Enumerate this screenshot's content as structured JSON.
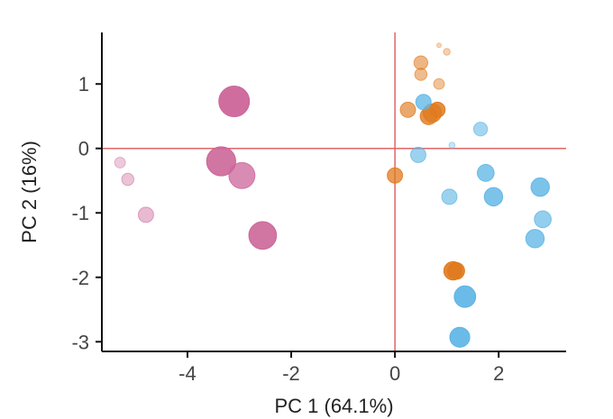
{
  "chart_data": {
    "type": "scatter",
    "title": "",
    "xlabel": "PC 1 (64.1%)",
    "ylabel": "PC 2 (16%)",
    "xlim": [
      -5.65,
      3.3
    ],
    "ylim": [
      -3.15,
      1.8
    ],
    "x_ticks": [
      -4,
      -2,
      0,
      2
    ],
    "x_tick_labels": [
      "-4",
      "-2",
      "0",
      "2"
    ],
    "y_ticks": [
      -3,
      -2,
      -1,
      0,
      1
    ],
    "y_tick_labels": [
      "-3",
      "-2",
      "-1",
      "0",
      "1"
    ],
    "reference_lines": {
      "x": 0,
      "y": 0,
      "color": "#e06666"
    },
    "grid": false,
    "legend": "none",
    "series": [
      {
        "color": "#cc6699",
        "points": [
          {
            "x": -3.1,
            "y": 0.73,
            "size": 1.0,
            "opacity": 0.95
          },
          {
            "x": -3.35,
            "y": -0.2,
            "size": 0.95,
            "opacity": 0.9
          },
          {
            "x": -2.95,
            "y": -0.42,
            "size": 0.85,
            "opacity": 0.75
          },
          {
            "x": -2.55,
            "y": -1.35,
            "size": 0.9,
            "opacity": 0.9
          },
          {
            "x": -5.3,
            "y": -0.22,
            "size": 0.35,
            "opacity": 0.35
          },
          {
            "x": -5.15,
            "y": -0.48,
            "size": 0.4,
            "opacity": 0.4
          },
          {
            "x": -4.8,
            "y": -1.03,
            "size": 0.5,
            "opacity": 0.45
          }
        ]
      },
      {
        "color": "#e07a1f",
        "points": [
          {
            "x": 0.85,
            "y": 1.6,
            "size": 0.12,
            "opacity": 0.3
          },
          {
            "x": 1.0,
            "y": 1.5,
            "size": 0.22,
            "opacity": 0.35
          },
          {
            "x": 0.5,
            "y": 1.33,
            "size": 0.45,
            "opacity": 0.55
          },
          {
            "x": 0.5,
            "y": 1.15,
            "size": 0.4,
            "opacity": 0.5
          },
          {
            "x": 0.85,
            "y": 1.0,
            "size": 0.35,
            "opacity": 0.45
          },
          {
            "x": 0.25,
            "y": 0.6,
            "size": 0.5,
            "opacity": 0.65
          },
          {
            "x": 0.72,
            "y": 0.55,
            "size": 0.6,
            "opacity": 0.8
          },
          {
            "x": 0.82,
            "y": 0.6,
            "size": 0.5,
            "opacity": 0.85
          },
          {
            "x": 0.65,
            "y": 0.5,
            "size": 0.55,
            "opacity": 0.8
          },
          {
            "x": 0.0,
            "y": -0.42,
            "size": 0.5,
            "opacity": 0.75
          },
          {
            "x": 1.12,
            "y": -1.9,
            "size": 0.6,
            "opacity": 0.9
          },
          {
            "x": 1.18,
            "y": -1.9,
            "size": 0.55,
            "opacity": 0.9
          }
        ]
      },
      {
        "color": "#5bb4e5",
        "points": [
          {
            "x": 0.55,
            "y": 0.72,
            "size": 0.5,
            "opacity": 0.75
          },
          {
            "x": 1.65,
            "y": 0.3,
            "size": 0.45,
            "opacity": 0.55
          },
          {
            "x": 1.1,
            "y": 0.05,
            "size": 0.2,
            "opacity": 0.35
          },
          {
            "x": 0.45,
            "y": -0.1,
            "size": 0.5,
            "opacity": 0.6
          },
          {
            "x": 1.75,
            "y": -0.38,
            "size": 0.55,
            "opacity": 0.75
          },
          {
            "x": 1.05,
            "y": -0.75,
            "size": 0.5,
            "opacity": 0.6
          },
          {
            "x": 1.9,
            "y": -0.75,
            "size": 0.6,
            "opacity": 0.8
          },
          {
            "x": 2.8,
            "y": -0.6,
            "size": 0.6,
            "opacity": 0.8
          },
          {
            "x": 2.85,
            "y": -1.1,
            "size": 0.55,
            "opacity": 0.65
          },
          {
            "x": 2.7,
            "y": -1.4,
            "size": 0.6,
            "opacity": 0.75
          },
          {
            "x": 1.35,
            "y": -2.3,
            "size": 0.7,
            "opacity": 0.9
          },
          {
            "x": 1.25,
            "y": -2.93,
            "size": 0.65,
            "opacity": 0.9
          }
        ]
      }
    ]
  }
}
